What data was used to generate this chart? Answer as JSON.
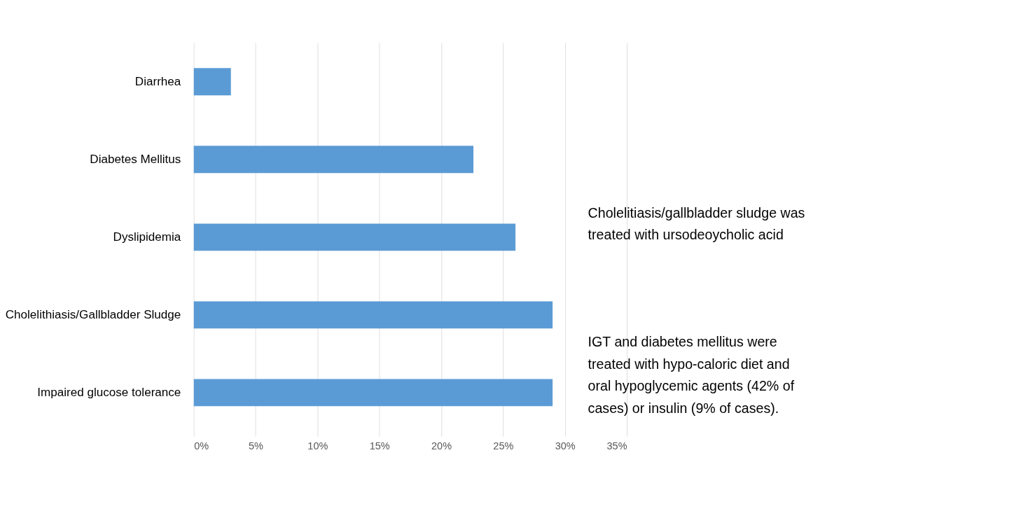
{
  "chart_data": {
    "type": "bar",
    "orientation": "horizontal",
    "categories": [
      "Diarrhea",
      "Diabetes Mellitus",
      "Dyslipidemia",
      "Cholelithiasis/Gallbladder Sludge",
      "Impaired glucose tolerance"
    ],
    "values": [
      3,
      22.6,
      26,
      29,
      29
    ],
    "color": "#5b9bd5",
    "xlim": [
      0,
      35
    ],
    "xticks": [
      {
        "value": 0,
        "label": "0%"
      },
      {
        "value": 5,
        "label": "5%"
      },
      {
        "value": 10,
        "label": "10%"
      },
      {
        "value": 15,
        "label": "15%"
      },
      {
        "value": 20,
        "label": "20%"
      },
      {
        "value": 25,
        "label": "25%"
      },
      {
        "value": 30,
        "label": "30%"
      },
      {
        "value": 35,
        "label": "35%"
      }
    ],
    "grid": "x",
    "annotations": [
      "Cholelitiasis/gallbladder sludge was treated with ursodeoycholic acid",
      "IGT and diabetes mellitus were treated with hypo-caloric diet and oral hypoglycemic agents (42% of cases) or insulin (9% of cases)."
    ]
  }
}
